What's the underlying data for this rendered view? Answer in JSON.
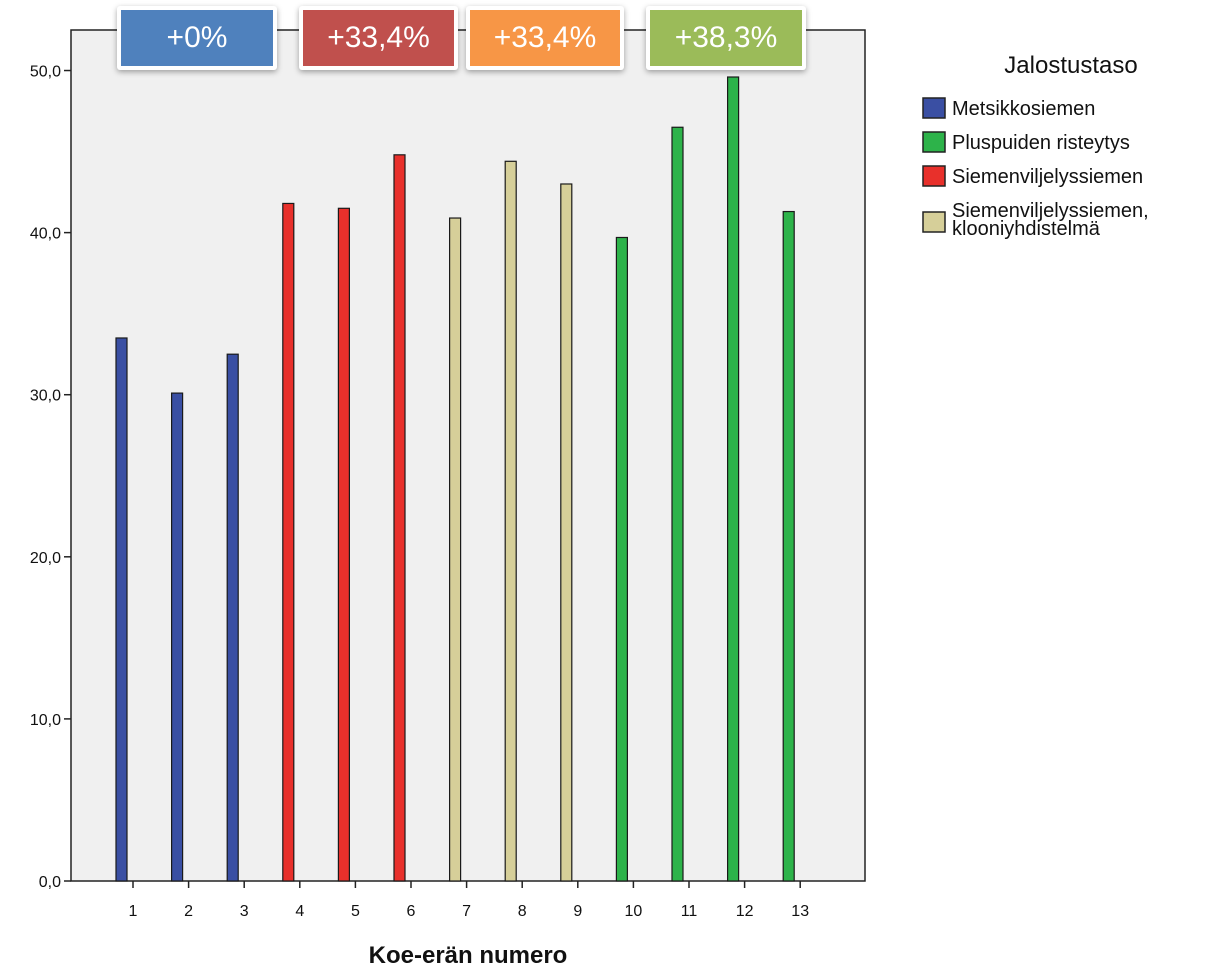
{
  "chart_data": {
    "type": "bar",
    "xlabel": "Koe-erän numero",
    "ylabel": "",
    "ylim": [
      0,
      52
    ],
    "yticks": [
      "0,0",
      "10,0",
      "20,0",
      "30,0",
      "40,0",
      "50,0"
    ],
    "ytick_values": [
      0,
      10,
      20,
      30,
      40,
      50
    ],
    "categories": [
      "1",
      "2",
      "3",
      "4",
      "5",
      "6",
      "7",
      "8",
      "9",
      "10",
      "11",
      "12",
      "13"
    ],
    "grid": false,
    "legend": {
      "title": "Jalostustaso",
      "placement": "right",
      "entries": [
        {
          "label": "Metsikkosiemen",
          "color": "#3a4fa3"
        },
        {
          "label": "Pluspuiden risteytys",
          "color": "#2db34a"
        },
        {
          "label": "Siemenviljelyssiemen",
          "color": "#e8302b"
        },
        {
          "label_lines": [
            "Siemenviljelyssiemen,",
            "klooniyhdistelmä"
          ],
          "color": "#d6cf99"
        }
      ]
    },
    "series": [
      {
        "name": "Metsikkosiemen",
        "color": "#3a4fa3",
        "values": [
          33.5,
          30.1,
          32.5,
          null,
          null,
          null,
          null,
          null,
          null,
          null,
          null,
          null,
          null
        ]
      },
      {
        "name": "Siemenviljelyssiemen",
        "color": "#e8302b",
        "values": [
          null,
          null,
          null,
          41.8,
          41.5,
          44.8,
          null,
          null,
          null,
          null,
          null,
          null,
          null
        ]
      },
      {
        "name": "Siemenviljelyssiemen, klooniyhdistelmä",
        "color": "#d6cf99",
        "values": [
          null,
          null,
          null,
          null,
          null,
          null,
          40.9,
          44.4,
          43.0,
          null,
          null,
          null,
          null
        ]
      },
      {
        "name": "Pluspuiden risteytys",
        "color": "#2db34a",
        "values": [
          null,
          null,
          null,
          null,
          null,
          null,
          null,
          null,
          null,
          39.7,
          46.5,
          49.6,
          41.3
        ]
      }
    ],
    "annotations": [
      {
        "text": "+0%",
        "color": "#4f81bd"
      },
      {
        "text": "+33,4%",
        "color": "#c0504d"
      },
      {
        "text": "+33,4%",
        "color": "#f79646"
      },
      {
        "text": "+38,3%",
        "color": "#9bbb59"
      }
    ]
  }
}
